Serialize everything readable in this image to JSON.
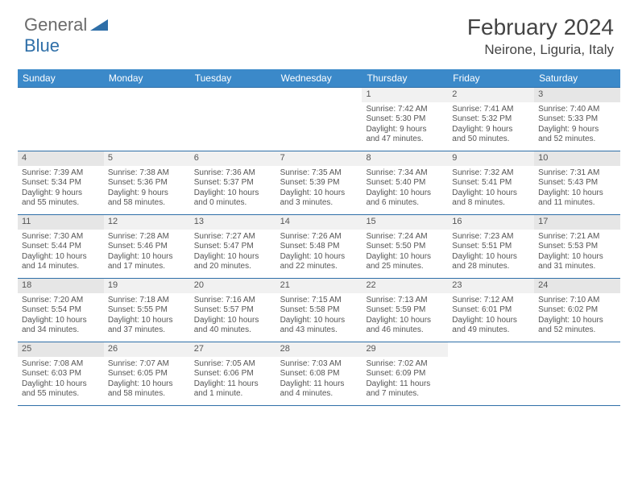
{
  "brand": {
    "text1": "General",
    "text2": "Blue"
  },
  "title": "February 2024",
  "location": "Neirone, Liguria, Italy",
  "colors": {
    "header_bg": "#3b89c9",
    "border": "#2f6fa8",
    "daynum_bg": "#f1f1f1",
    "weekend_daynum_bg": "#e6e6e6",
    "text": "#555555",
    "title_text": "#444444",
    "logo_gray": "#6b6b6b",
    "logo_blue": "#2f6fa8"
  },
  "day_names": [
    "Sunday",
    "Monday",
    "Tuesday",
    "Wednesday",
    "Thursday",
    "Friday",
    "Saturday"
  ],
  "weeks": [
    [
      {
        "empty": true
      },
      {
        "empty": true
      },
      {
        "empty": true
      },
      {
        "empty": true
      },
      {
        "day": "1",
        "sunrise": "Sunrise: 7:42 AM",
        "sunset": "Sunset: 5:30 PM",
        "dl1": "Daylight: 9 hours",
        "dl2": "and 47 minutes."
      },
      {
        "day": "2",
        "sunrise": "Sunrise: 7:41 AM",
        "sunset": "Sunset: 5:32 PM",
        "dl1": "Daylight: 9 hours",
        "dl2": "and 50 minutes."
      },
      {
        "day": "3",
        "sunrise": "Sunrise: 7:40 AM",
        "sunset": "Sunset: 5:33 PM",
        "dl1": "Daylight: 9 hours",
        "dl2": "and 52 minutes."
      }
    ],
    [
      {
        "day": "4",
        "sunrise": "Sunrise: 7:39 AM",
        "sunset": "Sunset: 5:34 PM",
        "dl1": "Daylight: 9 hours",
        "dl2": "and 55 minutes."
      },
      {
        "day": "5",
        "sunrise": "Sunrise: 7:38 AM",
        "sunset": "Sunset: 5:36 PM",
        "dl1": "Daylight: 9 hours",
        "dl2": "and 58 minutes."
      },
      {
        "day": "6",
        "sunrise": "Sunrise: 7:36 AM",
        "sunset": "Sunset: 5:37 PM",
        "dl1": "Daylight: 10 hours",
        "dl2": "and 0 minutes."
      },
      {
        "day": "7",
        "sunrise": "Sunrise: 7:35 AM",
        "sunset": "Sunset: 5:39 PM",
        "dl1": "Daylight: 10 hours",
        "dl2": "and 3 minutes."
      },
      {
        "day": "8",
        "sunrise": "Sunrise: 7:34 AM",
        "sunset": "Sunset: 5:40 PM",
        "dl1": "Daylight: 10 hours",
        "dl2": "and 6 minutes."
      },
      {
        "day": "9",
        "sunrise": "Sunrise: 7:32 AM",
        "sunset": "Sunset: 5:41 PM",
        "dl1": "Daylight: 10 hours",
        "dl2": "and 8 minutes."
      },
      {
        "day": "10",
        "sunrise": "Sunrise: 7:31 AM",
        "sunset": "Sunset: 5:43 PM",
        "dl1": "Daylight: 10 hours",
        "dl2": "and 11 minutes."
      }
    ],
    [
      {
        "day": "11",
        "sunrise": "Sunrise: 7:30 AM",
        "sunset": "Sunset: 5:44 PM",
        "dl1": "Daylight: 10 hours",
        "dl2": "and 14 minutes."
      },
      {
        "day": "12",
        "sunrise": "Sunrise: 7:28 AM",
        "sunset": "Sunset: 5:46 PM",
        "dl1": "Daylight: 10 hours",
        "dl2": "and 17 minutes."
      },
      {
        "day": "13",
        "sunrise": "Sunrise: 7:27 AM",
        "sunset": "Sunset: 5:47 PM",
        "dl1": "Daylight: 10 hours",
        "dl2": "and 20 minutes."
      },
      {
        "day": "14",
        "sunrise": "Sunrise: 7:26 AM",
        "sunset": "Sunset: 5:48 PM",
        "dl1": "Daylight: 10 hours",
        "dl2": "and 22 minutes."
      },
      {
        "day": "15",
        "sunrise": "Sunrise: 7:24 AM",
        "sunset": "Sunset: 5:50 PM",
        "dl1": "Daylight: 10 hours",
        "dl2": "and 25 minutes."
      },
      {
        "day": "16",
        "sunrise": "Sunrise: 7:23 AM",
        "sunset": "Sunset: 5:51 PM",
        "dl1": "Daylight: 10 hours",
        "dl2": "and 28 minutes."
      },
      {
        "day": "17",
        "sunrise": "Sunrise: 7:21 AM",
        "sunset": "Sunset: 5:53 PM",
        "dl1": "Daylight: 10 hours",
        "dl2": "and 31 minutes."
      }
    ],
    [
      {
        "day": "18",
        "sunrise": "Sunrise: 7:20 AM",
        "sunset": "Sunset: 5:54 PM",
        "dl1": "Daylight: 10 hours",
        "dl2": "and 34 minutes."
      },
      {
        "day": "19",
        "sunrise": "Sunrise: 7:18 AM",
        "sunset": "Sunset: 5:55 PM",
        "dl1": "Daylight: 10 hours",
        "dl2": "and 37 minutes."
      },
      {
        "day": "20",
        "sunrise": "Sunrise: 7:16 AM",
        "sunset": "Sunset: 5:57 PM",
        "dl1": "Daylight: 10 hours",
        "dl2": "and 40 minutes."
      },
      {
        "day": "21",
        "sunrise": "Sunrise: 7:15 AM",
        "sunset": "Sunset: 5:58 PM",
        "dl1": "Daylight: 10 hours",
        "dl2": "and 43 minutes."
      },
      {
        "day": "22",
        "sunrise": "Sunrise: 7:13 AM",
        "sunset": "Sunset: 5:59 PM",
        "dl1": "Daylight: 10 hours",
        "dl2": "and 46 minutes."
      },
      {
        "day": "23",
        "sunrise": "Sunrise: 7:12 AM",
        "sunset": "Sunset: 6:01 PM",
        "dl1": "Daylight: 10 hours",
        "dl2": "and 49 minutes."
      },
      {
        "day": "24",
        "sunrise": "Sunrise: 7:10 AM",
        "sunset": "Sunset: 6:02 PM",
        "dl1": "Daylight: 10 hours",
        "dl2": "and 52 minutes."
      }
    ],
    [
      {
        "day": "25",
        "sunrise": "Sunrise: 7:08 AM",
        "sunset": "Sunset: 6:03 PM",
        "dl1": "Daylight: 10 hours",
        "dl2": "and 55 minutes."
      },
      {
        "day": "26",
        "sunrise": "Sunrise: 7:07 AM",
        "sunset": "Sunset: 6:05 PM",
        "dl1": "Daylight: 10 hours",
        "dl2": "and 58 minutes."
      },
      {
        "day": "27",
        "sunrise": "Sunrise: 7:05 AM",
        "sunset": "Sunset: 6:06 PM",
        "dl1": "Daylight: 11 hours",
        "dl2": "and 1 minute."
      },
      {
        "day": "28",
        "sunrise": "Sunrise: 7:03 AM",
        "sunset": "Sunset: 6:08 PM",
        "dl1": "Daylight: 11 hours",
        "dl2": "and 4 minutes."
      },
      {
        "day": "29",
        "sunrise": "Sunrise: 7:02 AM",
        "sunset": "Sunset: 6:09 PM",
        "dl1": "Daylight: 11 hours",
        "dl2": "and 7 minutes."
      },
      {
        "empty": true
      },
      {
        "empty": true
      }
    ]
  ]
}
